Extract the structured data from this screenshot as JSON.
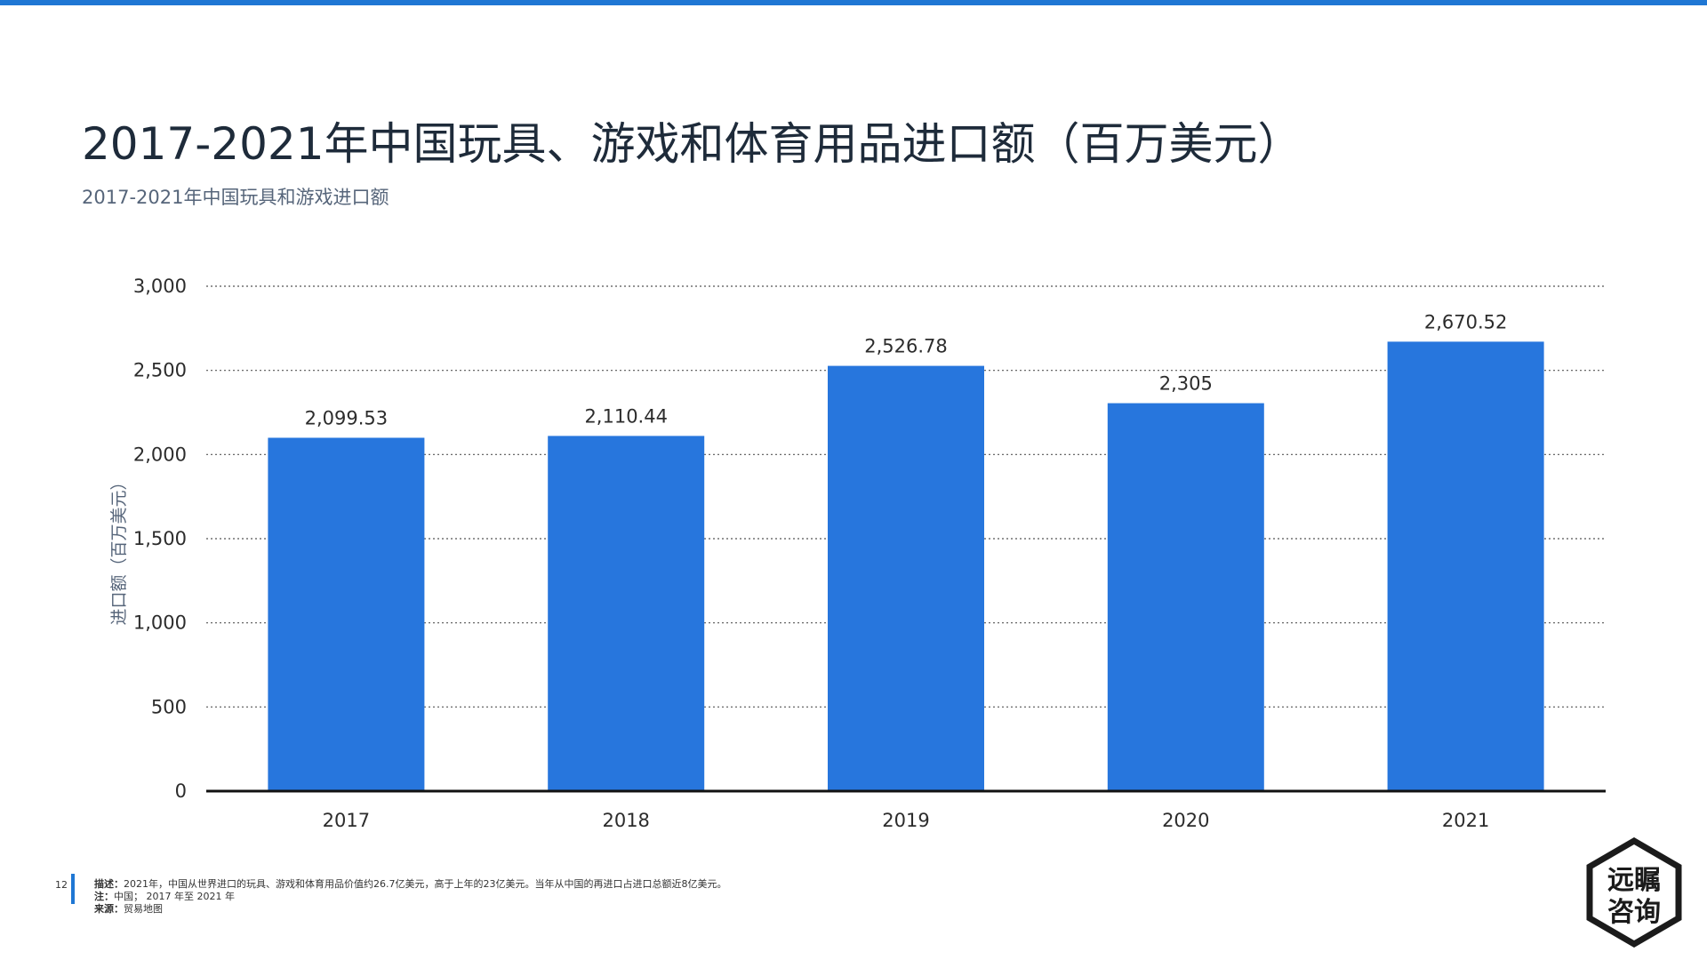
{
  "header": {
    "title": "2017-2021年中国玩具、游戏和体育用品进口额（百万美元）",
    "subtitle": "2017-2021年中国玩具和游戏进口额"
  },
  "chart_data": {
    "type": "bar",
    "categories": [
      "2017",
      "2018",
      "2019",
      "2020",
      "2021"
    ],
    "values": [
      2099.53,
      2110.44,
      2526.78,
      2305,
      2670.52
    ],
    "value_labels": [
      "2,099.53",
      "2,110.44",
      "2,526.78",
      "2,305",
      "2,670.52"
    ],
    "ylabel": "进口额（百万美元）",
    "xlabel": "",
    "ylim": [
      0,
      3000
    ],
    "yticks": [
      0,
      500,
      1000,
      1500,
      2000,
      2500,
      3000
    ],
    "ytick_labels": [
      "0",
      "500",
      "1,000",
      "1,500",
      "2,000",
      "2,500",
      "3,000"
    ],
    "grid": "dotted horizontal",
    "bar_color": "#2776dd"
  },
  "footer": {
    "page_number": "12",
    "desc_label": "描述：",
    "desc_text": "2021年，中国从世界进口的玩具、游戏和体育用品价值约26.7亿美元，高于上年的23亿美元。当年从中国的再进口占进口总额近8亿美元。",
    "note_label": "注：",
    "note_text": "中国； 2017 年至 2021 年",
    "source_label": "来源：",
    "source_text": "贸易地图"
  },
  "logo": {
    "text_line1": "远瞩",
    "text_line2": "咨询"
  },
  "colors": {
    "accent": "#1f77d4",
    "bar": "#2776dd",
    "title": "#1e2b3a"
  }
}
